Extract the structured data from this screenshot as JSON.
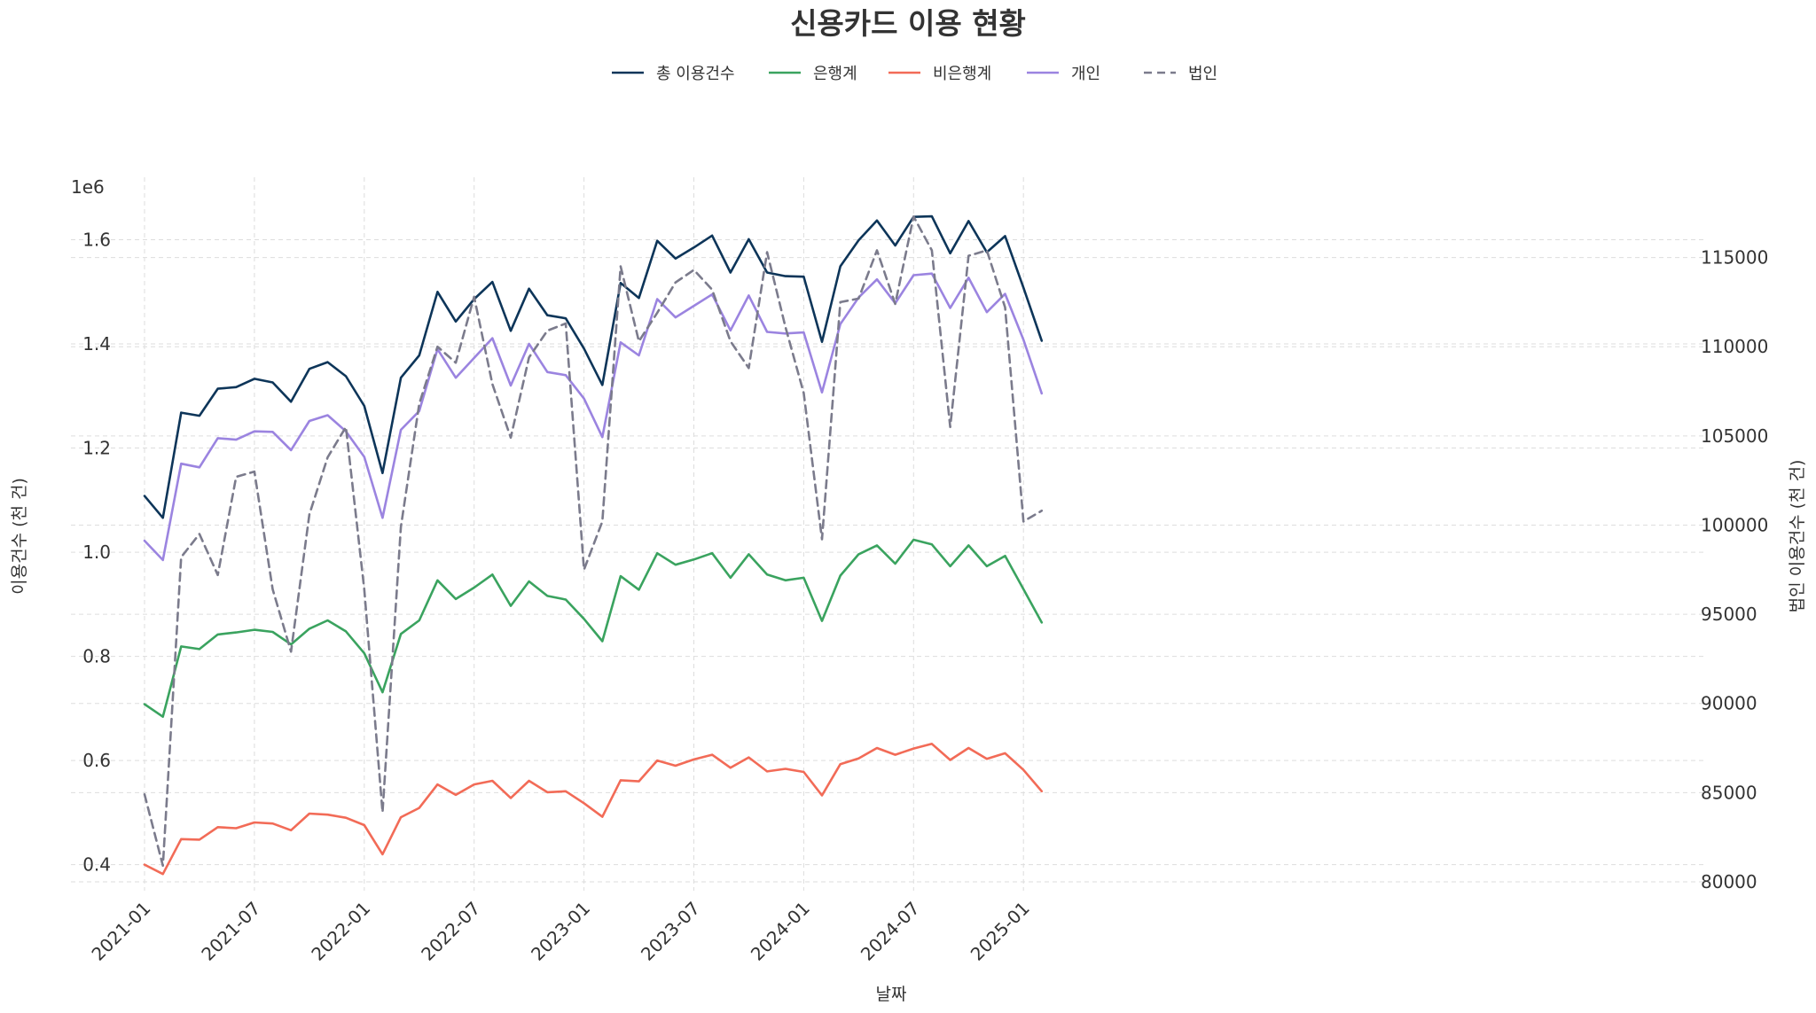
{
  "chart_data": {
    "type": "line",
    "title": "신용카드 이용 현황",
    "xlabel": "날짜",
    "ylabel": "이용건수 (천 건)",
    "ylabel_right": "법인 이용건수 (천 건)",
    "y_offset_label": "1e6",
    "x_tick_labels": [
      "2021-01",
      "2021-07",
      "2022-01",
      "2022-07",
      "2023-01",
      "2023-07",
      "2024-01",
      "2024-07",
      "2025-01"
    ],
    "y_ticks_left": [
      0.4,
      0.6,
      0.8,
      1.0,
      1.2,
      1.4,
      1.6
    ],
    "y_ticks_right": [
      80000,
      85000,
      90000,
      95000,
      100000,
      105000,
      110000,
      115000
    ],
    "ylim_left": [
      0.35,
      1.72
    ],
    "ylim_right": [
      79500,
      119500
    ],
    "grid": true,
    "legend": "top-center",
    "x": [
      "2021-01",
      "2021-02",
      "2021-03",
      "2021-04",
      "2021-05",
      "2021-06",
      "2021-07",
      "2021-08",
      "2021-09",
      "2021-10",
      "2021-11",
      "2021-12",
      "2022-01",
      "2022-02",
      "2022-03",
      "2022-04",
      "2022-05",
      "2022-06",
      "2022-07",
      "2022-08",
      "2022-09",
      "2022-10",
      "2022-11",
      "2022-12",
      "2023-01",
      "2023-02",
      "2023-03",
      "2023-04",
      "2023-05",
      "2023-06",
      "2023-07",
      "2023-08",
      "2023-09",
      "2023-10",
      "2023-11",
      "2023-12",
      "2024-01",
      "2024-02",
      "2024-03",
      "2024-04",
      "2024-05",
      "2024-06",
      "2024-07",
      "2024-08",
      "2024-09",
      "2024-10",
      "2024-11",
      "2024-12",
      "2025-01",
      "2025-02"
    ],
    "series": [
      {
        "name": "총 이용건수",
        "axis": "left",
        "color": "#0d3559",
        "dashed": false,
        "values": [
          1.108,
          1.066,
          1.268,
          1.262,
          1.314,
          1.317,
          1.333,
          1.326,
          1.289,
          1.352,
          1.365,
          1.338,
          1.281,
          1.152,
          1.335,
          1.378,
          1.5,
          1.443,
          1.486,
          1.519,
          1.425,
          1.506,
          1.455,
          1.449,
          1.391,
          1.321,
          1.517,
          1.488,
          1.598,
          1.564,
          1.585,
          1.608,
          1.537,
          1.601,
          1.537,
          1.53,
          1.529,
          1.404,
          1.549,
          1.599,
          1.637,
          1.589,
          1.644,
          1.645,
          1.574,
          1.636,
          1.576,
          1.607,
          1.508,
          1.406
        ]
      },
      {
        "name": "은행계",
        "axis": "left",
        "color": "#3aa35f",
        "dashed": false,
        "values": [
          0.708,
          0.684,
          0.819,
          0.814,
          0.842,
          0.846,
          0.851,
          0.847,
          0.823,
          0.853,
          0.869,
          0.848,
          0.806,
          0.731,
          0.843,
          0.869,
          0.946,
          0.91,
          0.932,
          0.957,
          0.897,
          0.944,
          0.916,
          0.909,
          0.872,
          0.829,
          0.954,
          0.928,
          0.998,
          0.976,
          0.986,
          0.998,
          0.951,
          0.996,
          0.957,
          0.946,
          0.951,
          0.868,
          0.955,
          0.996,
          1.013,
          0.978,
          1.024,
          1.015,
          0.973,
          1.013,
          0.973,
          0.993,
          0.929,
          0.865
        ]
      },
      {
        "name": "비은행계",
        "axis": "left",
        "color": "#f26b57",
        "dashed": false,
        "values": [
          0.4,
          0.382,
          0.449,
          0.448,
          0.472,
          0.47,
          0.481,
          0.479,
          0.466,
          0.498,
          0.496,
          0.49,
          0.476,
          0.42,
          0.491,
          0.509,
          0.554,
          0.534,
          0.554,
          0.561,
          0.528,
          0.561,
          0.539,
          0.541,
          0.518,
          0.492,
          0.562,
          0.56,
          0.6,
          0.59,
          0.602,
          0.611,
          0.586,
          0.606,
          0.579,
          0.584,
          0.578,
          0.533,
          0.593,
          0.604,
          0.624,
          0.611,
          0.623,
          0.632,
          0.601,
          0.624,
          0.603,
          0.614,
          0.582,
          0.541
        ]
      },
      {
        "name": "개인",
        "axis": "left",
        "color": "#9b84e0",
        "dashed": false,
        "values": [
          1.022,
          0.985,
          1.17,
          1.163,
          1.219,
          1.216,
          1.232,
          1.231,
          1.196,
          1.252,
          1.263,
          1.232,
          1.183,
          1.066,
          1.235,
          1.271,
          1.39,
          1.335,
          1.373,
          1.411,
          1.32,
          1.4,
          1.346,
          1.34,
          1.295,
          1.221,
          1.403,
          1.378,
          1.486,
          1.451,
          1.473,
          1.495,
          1.426,
          1.493,
          1.423,
          1.42,
          1.422,
          1.307,
          1.438,
          1.489,
          1.524,
          1.478,
          1.532,
          1.535,
          1.469,
          1.527,
          1.461,
          1.496,
          1.408,
          1.305
        ]
      },
      {
        "name": "법인",
        "axis": "right",
        "color": "#7b7b8c",
        "dashed": true,
        "values": [
          84900,
          80900,
          98200,
          99500,
          97200,
          102700,
          103000,
          96400,
          92900,
          100600,
          103800,
          105500,
          96400,
          83900,
          99900,
          106800,
          110000,
          109100,
          112800,
          107900,
          104900,
          109400,
          110900,
          111300,
          97500,
          100200,
          114500,
          110300,
          111900,
          113600,
          114300,
          113200,
          110300,
          108800,
          115300,
          111100,
          107400,
          99200,
          112500,
          112700,
          115400,
          112400,
          117300,
          115400,
          105500,
          115100,
          115400,
          112200,
          100200,
          100800
        ]
      }
    ]
  }
}
